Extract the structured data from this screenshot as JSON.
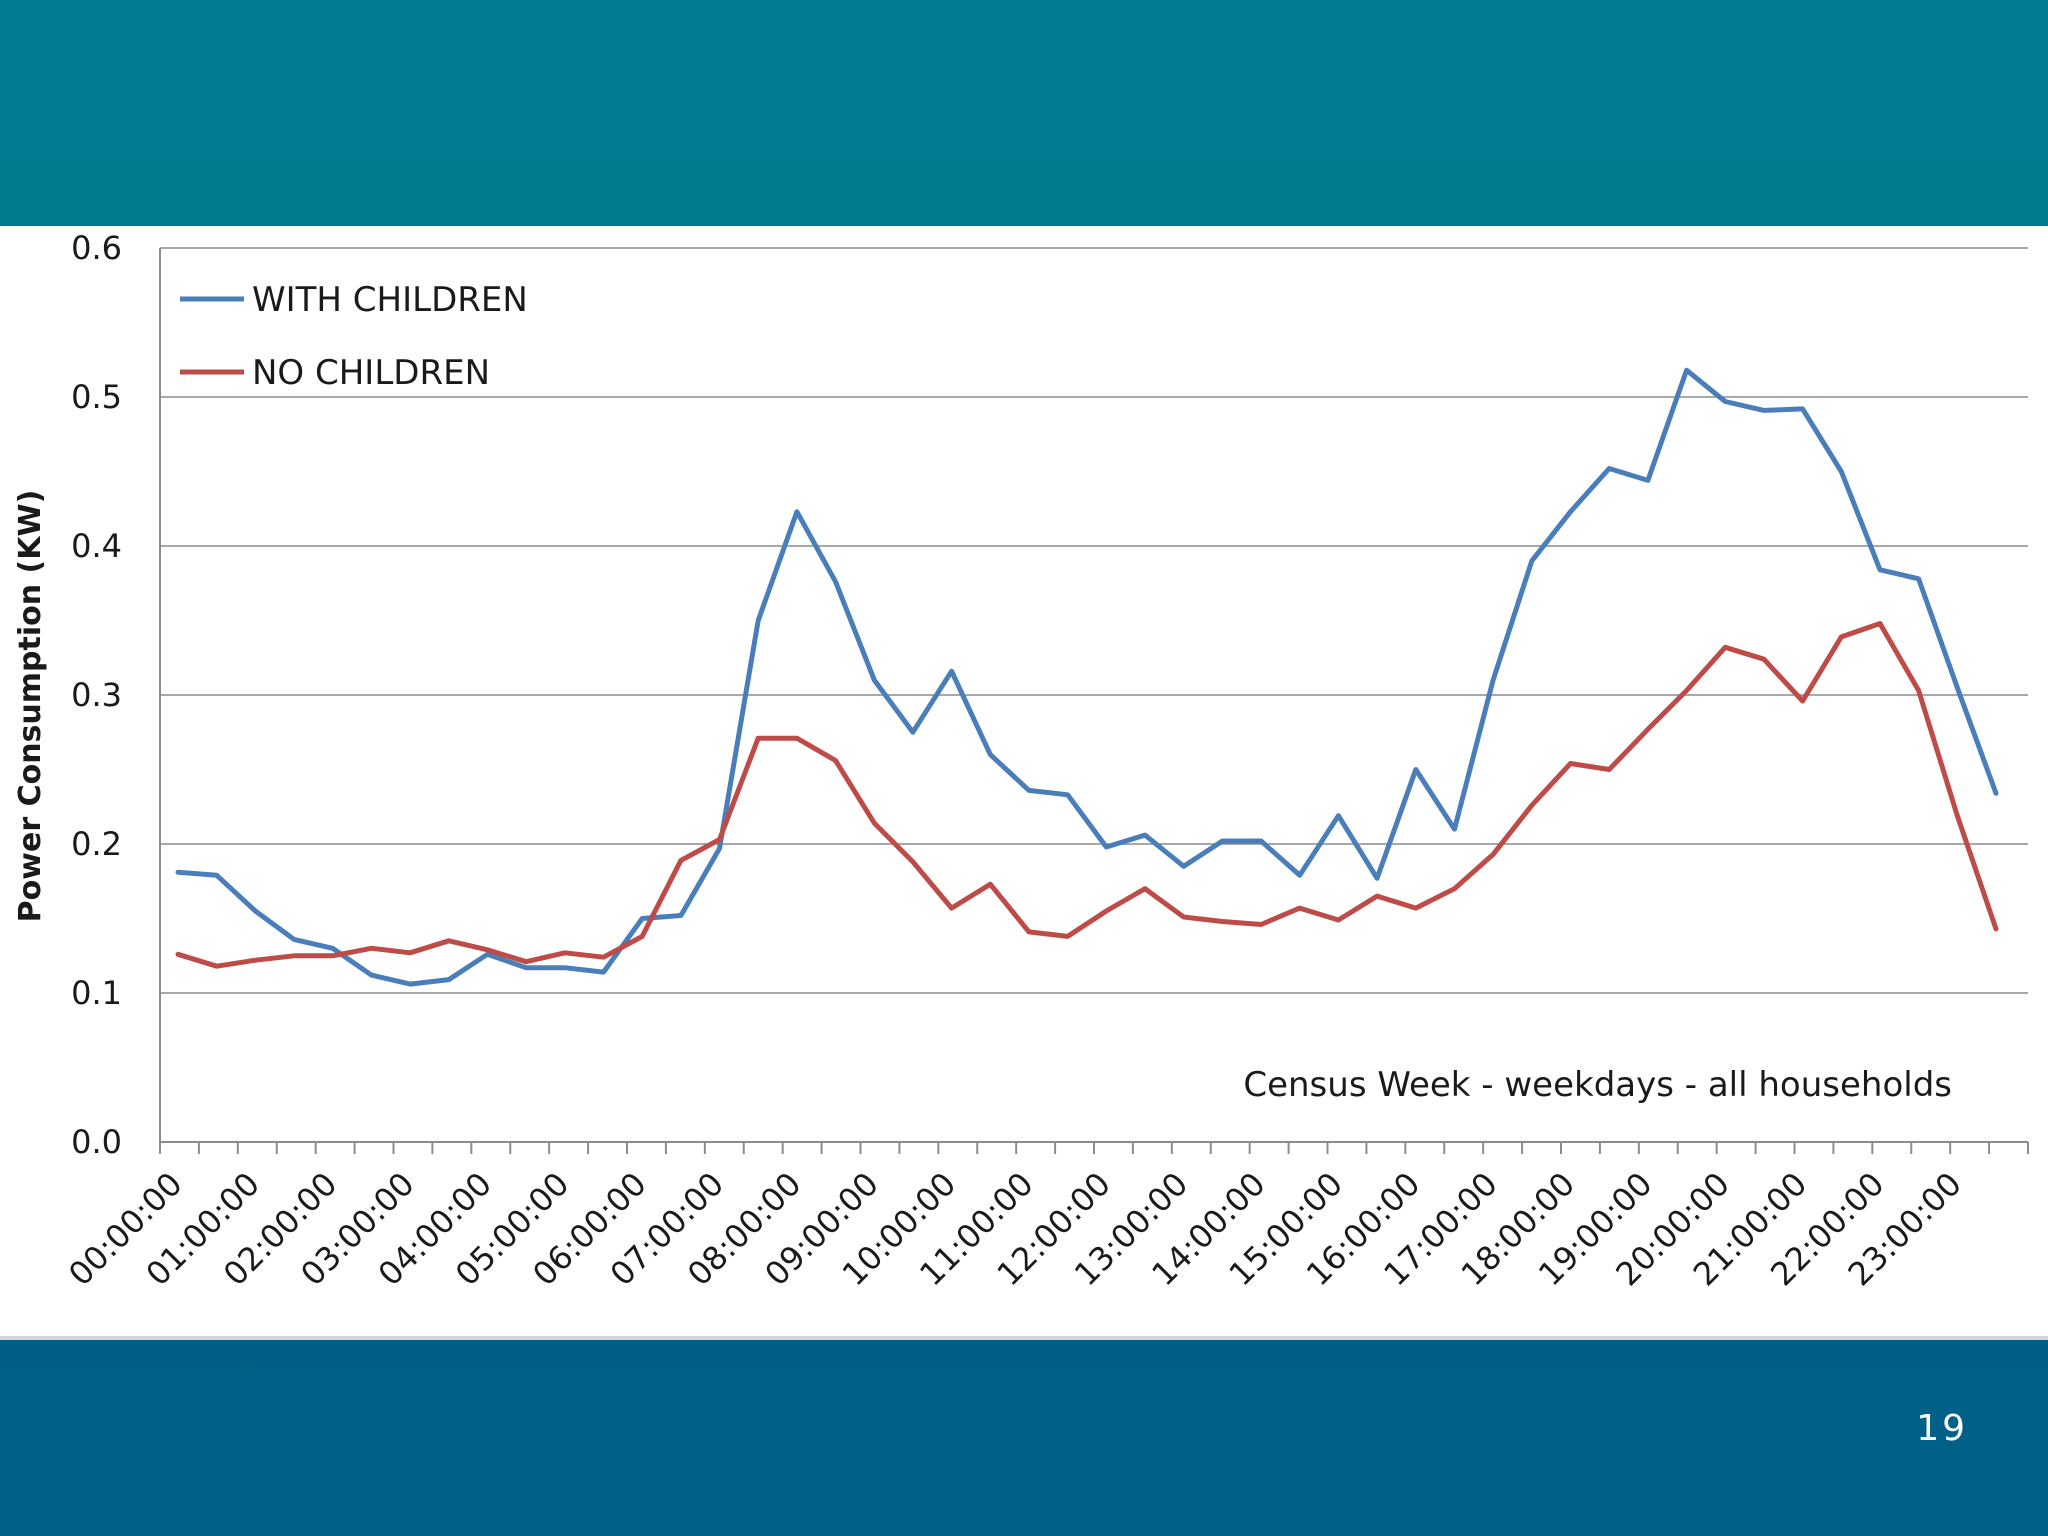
{
  "page": {
    "page_number": "19",
    "colors": {
      "top_band": "#007a90",
      "bottom_band": "#005f86"
    }
  },
  "chart_data": {
    "type": "line",
    "title": "",
    "xlabel": "",
    "ylabel": "Power Consumption (KW)",
    "ylim": [
      0,
      0.6
    ],
    "yticks": [
      "0.0",
      "0.1",
      "0.2",
      "0.3",
      "0.4",
      "0.5",
      "0.6"
    ],
    "grid": true,
    "legend_position": "top-left",
    "annotation": "Census Week - weekdays - all households",
    "x_tick_labels": [
      "00:00:00",
      "01:00:00",
      "02:00:00",
      "03:00:00",
      "04:00:00",
      "05:00:00",
      "06:00:00",
      "07:00:00",
      "08:00:00",
      "09:00:00",
      "10:00:00",
      "11:00:00",
      "12:00:00",
      "13:00:00",
      "14:00:00",
      "15:00:00",
      "16:00:00",
      "17:00:00",
      "18:00:00",
      "19:00:00",
      "20:00:00",
      "21:00:00",
      "22:00:00",
      "23:00:00"
    ],
    "series": [
      {
        "name": "WITH CHILDREN",
        "color": "#4a7ebb",
        "values": [
          0.181,
          0.179,
          0.155,
          0.136,
          0.13,
          0.112,
          0.106,
          0.109,
          0.126,
          0.117,
          0.117,
          0.114,
          0.15,
          0.152,
          0.197,
          0.35,
          0.423,
          0.376,
          0.31,
          0.275,
          0.316,
          0.26,
          0.236,
          0.233,
          0.198,
          0.206,
          0.185,
          0.202,
          0.202,
          0.179,
          0.219,
          0.177,
          0.25,
          0.21,
          0.31,
          0.39,
          0.423,
          0.452,
          0.444,
          0.518,
          0.497,
          0.491,
          0.492,
          0.45,
          0.384,
          0.378,
          0.305,
          0.234
        ]
      },
      {
        "name": "NO CHILDREN",
        "color": "#be4b48",
        "values": [
          0.126,
          0.118,
          0.122,
          0.125,
          0.125,
          0.13,
          0.127,
          0.135,
          0.129,
          0.121,
          0.127,
          0.124,
          0.138,
          0.189,
          0.203,
          0.271,
          0.271,
          0.256,
          0.214,
          0.188,
          0.157,
          0.173,
          0.141,
          0.138,
          0.155,
          0.17,
          0.151,
          0.148,
          0.146,
          0.157,
          0.149,
          0.165,
          0.157,
          0.17,
          0.193,
          0.226,
          0.254,
          0.25,
          0.277,
          0.303,
          0.332,
          0.324,
          0.296,
          0.339,
          0.348,
          0.303,
          0.219,
          0.143
        ]
      }
    ]
  }
}
